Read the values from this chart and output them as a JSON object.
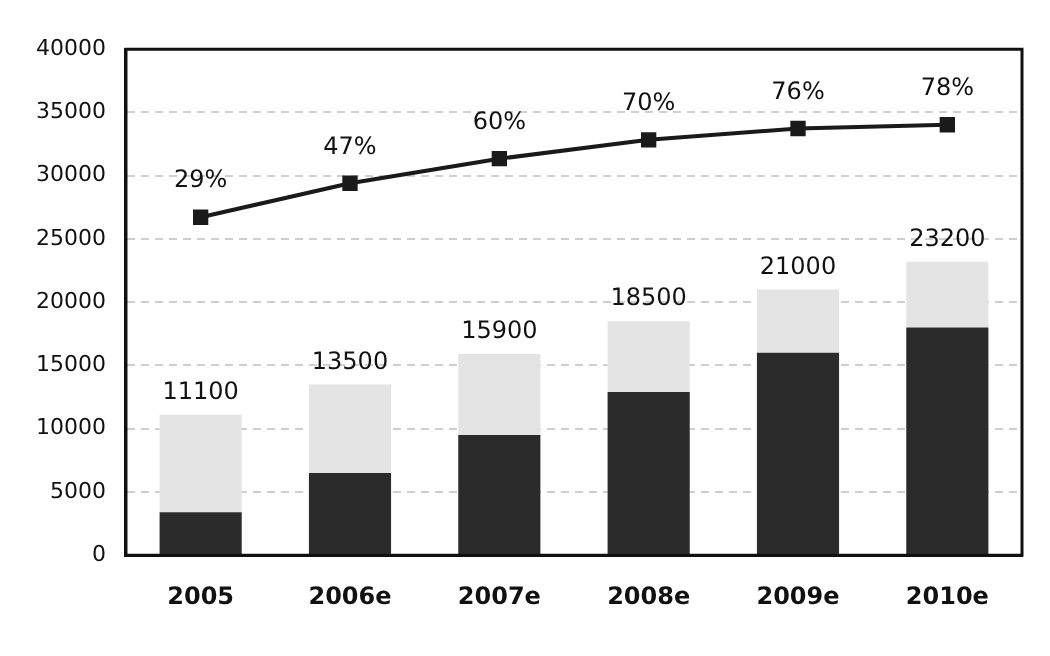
{
  "chart_data": {
    "type": "bar",
    "stacked": true,
    "categories": [
      "2005",
      "2006e",
      "2007e",
      "2008e",
      "2009e",
      "2010e"
    ],
    "series": [
      {
        "color": "#2b2b2b",
        "values": [
          3400,
          6500,
          9500,
          12900,
          16000,
          18000
        ]
      },
      {
        "color": "#e4e4e4",
        "values": [
          7700,
          7000,
          6400,
          5600,
          5000,
          5200
        ]
      },
      {
        "type": "line",
        "color": "#1a1a1a",
        "marker": "square",
        "axis": "y2",
        "values": [
          29,
          47,
          60,
          70,
          76,
          78
        ],
        "value_labels": [
          "29%",
          "47%",
          "60%",
          "70%",
          "76%",
          "78%"
        ]
      }
    ],
    "totals": [
      "11100",
      "13500",
      "15900",
      "18500",
      "21000",
      "23200"
    ],
    "ylim": [
      0,
      40000
    ],
    "yticks": [
      0,
      5000,
      10000,
      15000,
      20000,
      25000,
      30000,
      35000,
      40000
    ],
    "y2lim": [
      -150,
      118
    ],
    "grid": "y",
    "legend": false
  }
}
